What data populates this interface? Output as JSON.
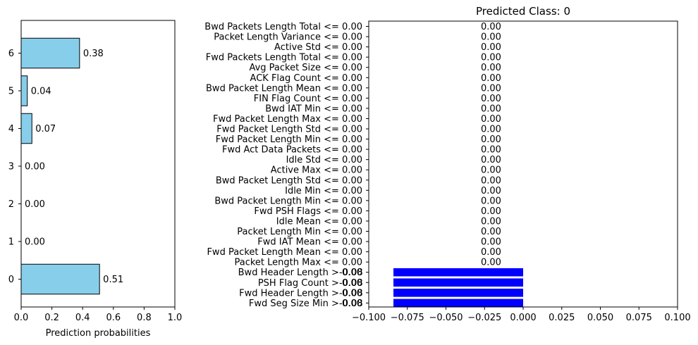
{
  "chart_data": [
    {
      "type": "bar",
      "orientation": "horizontal",
      "categories": [
        "0",
        "1",
        "2",
        "3",
        "4",
        "5",
        "6"
      ],
      "values": [
        0.51,
        0.0,
        0.0,
        0.0,
        0.07,
        0.04,
        0.38
      ],
      "value_labels": [
        "0.51",
        "0.00",
        "0.00",
        "0.00",
        "0.07",
        "0.04",
        "0.38"
      ],
      "xlabel": "Prediction probabilities",
      "ylabel": "",
      "xlim": [
        0,
        1.0
      ],
      "xticks": [
        "0.0",
        "0.2",
        "0.4",
        "0.6",
        "0.8",
        "1.0"
      ],
      "grid": false,
      "colors": {
        "bar": "#87ceeb",
        "edge": "#000000"
      }
    },
    {
      "type": "bar",
      "orientation": "horizontal",
      "title": "Predicted Class: 0",
      "categories": [
        "Bwd Packets Length Total <= 0.00",
        "Packet Length Variance <= 0.00",
        "Active Std <= 0.00",
        "Fwd Packets Length Total <= 0.00",
        "Avg Packet Size <= 0.00",
        "ACK Flag Count <= 0.00",
        "Bwd Packet Length Mean <= 0.00",
        "FIN Flag Count <= 0.00",
        "Bwd IAT Min <= 0.00",
        "Fwd Packet Length Max <= 0.00",
        "Fwd Packet Length Std <= 0.00",
        "Fwd Packet Length Min <= 0.00",
        "Fwd Act Data Packets <= 0.00",
        "Idle Std <= 0.00",
        "Active Max <= 0.00",
        "Bwd Packet Length Std <= 0.00",
        "Idle Min <= 0.00",
        "Bwd Packet Length Min <= 0.00",
        "Fwd PSH Flags <= 0.00",
        "Idle Mean <= 0.00",
        "Packet Length Min <= 0.00",
        "Fwd IAT Mean <= 0.00",
        "Fwd Packet Length Mean <= 0.00",
        "Packet Length Max <= 0.00",
        "Bwd Header Length > 0.00",
        "PSH Flag Count > 0.00",
        "Fwd Header Length > 0.00",
        "Fwd Seg Size Min > 0.00"
      ],
      "values": [
        0.0,
        0.0,
        0.0,
        0.0,
        0.0,
        0.0,
        0.0,
        0.0,
        0.0,
        0.0,
        0.0,
        0.0,
        0.0,
        0.0,
        0.0,
        0.0,
        0.0,
        0.0,
        0.0,
        0.0,
        0.0,
        0.0,
        0.0,
        0.0,
        -0.084,
        -0.084,
        -0.084,
        -0.084
      ],
      "value_labels": [
        "0.00",
        "0.00",
        "0.00",
        "0.00",
        "0.00",
        "0.00",
        "0.00",
        "0.00",
        "0.00",
        "0.00",
        "0.00",
        "0.00",
        "0.00",
        "0.00",
        "0.00",
        "0.00",
        "0.00",
        "0.00",
        "0.00",
        "0.00",
        "0.00",
        "0.00",
        "0.00",
        "0.00",
        "-0.08",
        "-0.08",
        "-0.08",
        "-0.08"
      ],
      "xlabel": "",
      "ylabel": "",
      "xlim": [
        -0.1,
        0.1
      ],
      "xticks": [
        "−0.100",
        "−0.075",
        "−0.050",
        "−0.025",
        "0.000",
        "0.025",
        "0.050",
        "0.075",
        "0.100"
      ],
      "grid": false,
      "colors": {
        "bar": "#0000ff",
        "title": "#ffa500"
      }
    }
  ]
}
